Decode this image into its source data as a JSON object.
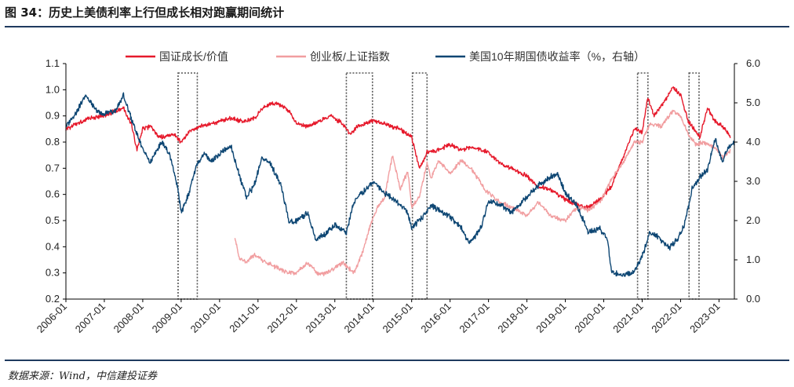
{
  "header": {
    "title": "图 34：历史上美债利率上行但成长相对跑赢期间统计"
  },
  "footer": {
    "source": "数据来源：Wind，中信建投证券"
  },
  "chart_data": {
    "type": "line",
    "title": "图 34：历史上美债利率上行但成长相对跑赢期间统计",
    "x_range": [
      2006.0,
      2023.4
    ],
    "x_ticks": [
      "2006-01",
      "2007-01",
      "2008-01",
      "2009-01",
      "2010-01",
      "2011-01",
      "2012-01",
      "2013-01",
      "2014-01",
      "2015-01",
      "2016-01",
      "2017-01",
      "2018-01",
      "2019-01",
      "2020-01",
      "2021-01",
      "2022-01",
      "2023-01"
    ],
    "y_left": {
      "range": [
        0.2,
        1.1
      ],
      "ticks": [
        "0.2",
        "0.3",
        "0.4",
        "0.5",
        "0.6",
        "0.7",
        "0.8",
        "0.9",
        "1.0",
        "1.1"
      ]
    },
    "y_right": {
      "range": [
        0.0,
        6.0
      ],
      "ticks": [
        "0.0",
        "1.0",
        "2.0",
        "3.0",
        "4.0",
        "5.0",
        "6.0"
      ]
    },
    "legend": {
      "position": "top"
    },
    "series": [
      {
        "name": "国证成长/价值",
        "axis": "left",
        "color": "#e6192b",
        "points": [
          [
            2006.0,
            0.85
          ],
          [
            2006.3,
            0.87
          ],
          [
            2006.6,
            0.89
          ],
          [
            2007.0,
            0.9
          ],
          [
            2007.3,
            0.92
          ],
          [
            2007.5,
            0.93
          ],
          [
            2007.7,
            0.87
          ],
          [
            2007.85,
            0.77
          ],
          [
            2008.0,
            0.85
          ],
          [
            2008.2,
            0.86
          ],
          [
            2008.4,
            0.82
          ],
          [
            2008.6,
            0.82
          ],
          [
            2008.8,
            0.83
          ],
          [
            2009.0,
            0.8
          ],
          [
            2009.2,
            0.84
          ],
          [
            2009.5,
            0.86
          ],
          [
            2009.8,
            0.87
          ],
          [
            2010.0,
            0.88
          ],
          [
            2010.3,
            0.89
          ],
          [
            2010.6,
            0.88
          ],
          [
            2010.9,
            0.89
          ],
          [
            2011.2,
            0.94
          ],
          [
            2011.5,
            0.95
          ],
          [
            2011.8,
            0.92
          ],
          [
            2012.0,
            0.87
          ],
          [
            2012.3,
            0.86
          ],
          [
            2012.6,
            0.88
          ],
          [
            2012.9,
            0.9
          ],
          [
            2013.2,
            0.87
          ],
          [
            2013.4,
            0.83
          ],
          [
            2013.6,
            0.86
          ],
          [
            2014.0,
            0.88
          ],
          [
            2014.3,
            0.87
          ],
          [
            2014.7,
            0.85
          ],
          [
            2015.0,
            0.82
          ],
          [
            2015.2,
            0.7
          ],
          [
            2015.4,
            0.76
          ],
          [
            2015.7,
            0.77
          ],
          [
            2016.0,
            0.79
          ],
          [
            2016.3,
            0.77
          ],
          [
            2016.6,
            0.78
          ],
          [
            2017.0,
            0.76
          ],
          [
            2017.3,
            0.72
          ],
          [
            2017.6,
            0.7
          ],
          [
            2018.0,
            0.67
          ],
          [
            2018.3,
            0.63
          ],
          [
            2018.6,
            0.62
          ],
          [
            2019.0,
            0.58
          ],
          [
            2019.3,
            0.56
          ],
          [
            2019.6,
            0.55
          ],
          [
            2019.9,
            0.58
          ],
          [
            2020.2,
            0.63
          ],
          [
            2020.5,
            0.74
          ],
          [
            2020.8,
            0.85
          ],
          [
            2021.0,
            0.84
          ],
          [
            2021.15,
            0.97
          ],
          [
            2021.3,
            0.9
          ],
          [
            2021.6,
            0.96
          ],
          [
            2021.8,
            1.01
          ],
          [
            2022.0,
            0.98
          ],
          [
            2022.2,
            0.88
          ],
          [
            2022.35,
            0.85
          ],
          [
            2022.5,
            0.82
          ],
          [
            2022.7,
            0.93
          ],
          [
            2022.9,
            0.88
          ],
          [
            2023.1,
            0.86
          ],
          [
            2023.3,
            0.82
          ]
        ]
      },
      {
        "name": "创业板/上证指数",
        "axis": "left",
        "color": "#f19ea0",
        "points": [
          [
            2010.4,
            0.44
          ],
          [
            2010.5,
            0.36
          ],
          [
            2010.7,
            0.34
          ],
          [
            2010.9,
            0.37
          ],
          [
            2011.2,
            0.34
          ],
          [
            2011.5,
            0.32
          ],
          [
            2011.8,
            0.3
          ],
          [
            2012.0,
            0.3
          ],
          [
            2012.3,
            0.34
          ],
          [
            2012.6,
            0.29
          ],
          [
            2012.9,
            0.31
          ],
          [
            2013.2,
            0.34
          ],
          [
            2013.5,
            0.3
          ],
          [
            2013.7,
            0.37
          ],
          [
            2013.9,
            0.47
          ],
          [
            2014.1,
            0.55
          ],
          [
            2014.3,
            0.59
          ],
          [
            2014.5,
            0.75
          ],
          [
            2014.7,
            0.62
          ],
          [
            2014.9,
            0.69
          ],
          [
            2015.0,
            0.55
          ],
          [
            2015.2,
            0.59
          ],
          [
            2015.4,
            0.72
          ],
          [
            2015.5,
            0.66
          ],
          [
            2015.7,
            0.73
          ],
          [
            2016.0,
            0.68
          ],
          [
            2016.3,
            0.73
          ],
          [
            2016.6,
            0.69
          ],
          [
            2016.9,
            0.62
          ],
          [
            2017.2,
            0.58
          ],
          [
            2017.6,
            0.55
          ],
          [
            2018.0,
            0.52
          ],
          [
            2018.3,
            0.57
          ],
          [
            2018.6,
            0.52
          ],
          [
            2019.0,
            0.5
          ],
          [
            2019.3,
            0.55
          ],
          [
            2019.6,
            0.54
          ],
          [
            2019.9,
            0.57
          ],
          [
            2020.2,
            0.66
          ],
          [
            2020.5,
            0.72
          ],
          [
            2020.8,
            0.8
          ],
          [
            2021.0,
            0.8
          ],
          [
            2021.2,
            0.87
          ],
          [
            2021.5,
            0.86
          ],
          [
            2021.8,
            0.92
          ],
          [
            2022.0,
            0.9
          ],
          [
            2022.2,
            0.83
          ],
          [
            2022.4,
            0.79
          ],
          [
            2022.6,
            0.8
          ],
          [
            2022.9,
            0.78
          ],
          [
            2023.1,
            0.74
          ],
          [
            2023.3,
            0.77
          ]
        ]
      },
      {
        "name": "美国10年期国债收益率（%，右轴）",
        "axis": "right",
        "color": "#0d4673",
        "points": [
          [
            2006.0,
            4.4
          ],
          [
            2006.3,
            4.8
          ],
          [
            2006.5,
            5.2
          ],
          [
            2006.8,
            4.8
          ],
          [
            2007.0,
            4.7
          ],
          [
            2007.3,
            4.8
          ],
          [
            2007.5,
            5.2
          ],
          [
            2007.7,
            4.6
          ],
          [
            2008.0,
            3.8
          ],
          [
            2008.2,
            3.5
          ],
          [
            2008.5,
            4.0
          ],
          [
            2008.7,
            3.7
          ],
          [
            2008.9,
            2.9
          ],
          [
            2009.0,
            2.2
          ],
          [
            2009.2,
            2.7
          ],
          [
            2009.4,
            3.4
          ],
          [
            2009.6,
            3.7
          ],
          [
            2009.8,
            3.5
          ],
          [
            2010.0,
            3.7
          ],
          [
            2010.3,
            3.9
          ],
          [
            2010.5,
            3.2
          ],
          [
            2010.7,
            2.6
          ],
          [
            2010.9,
            2.9
          ],
          [
            2011.1,
            3.6
          ],
          [
            2011.3,
            3.5
          ],
          [
            2011.6,
            2.9
          ],
          [
            2011.8,
            2.0
          ],
          [
            2012.0,
            2.0
          ],
          [
            2012.3,
            2.2
          ],
          [
            2012.5,
            1.5
          ],
          [
            2012.8,
            1.7
          ],
          [
            2013.0,
            1.9
          ],
          [
            2013.3,
            1.7
          ],
          [
            2013.5,
            2.5
          ],
          [
            2013.8,
            2.8
          ],
          [
            2014.0,
            3.0
          ],
          [
            2014.3,
            2.7
          ],
          [
            2014.6,
            2.5
          ],
          [
            2014.9,
            2.2
          ],
          [
            2015.0,
            1.8
          ],
          [
            2015.3,
            2.1
          ],
          [
            2015.5,
            2.4
          ],
          [
            2015.8,
            2.2
          ],
          [
            2016.0,
            2.1
          ],
          [
            2016.3,
            1.8
          ],
          [
            2016.5,
            1.4
          ],
          [
            2016.8,
            1.8
          ],
          [
            2017.0,
            2.5
          ],
          [
            2017.3,
            2.4
          ],
          [
            2017.6,
            2.2
          ],
          [
            2018.0,
            2.6
          ],
          [
            2018.3,
            2.9
          ],
          [
            2018.6,
            3.1
          ],
          [
            2018.8,
            3.2
          ],
          [
            2019.0,
            2.7
          ],
          [
            2019.3,
            2.4
          ],
          [
            2019.6,
            1.7
          ],
          [
            2019.9,
            1.8
          ],
          [
            2020.1,
            1.5
          ],
          [
            2020.2,
            0.7
          ],
          [
            2020.5,
            0.6
          ],
          [
            2020.8,
            0.7
          ],
          [
            2021.0,
            1.1
          ],
          [
            2021.2,
            1.7
          ],
          [
            2021.4,
            1.6
          ],
          [
            2021.7,
            1.3
          ],
          [
            2021.9,
            1.5
          ],
          [
            2022.1,
            1.9
          ],
          [
            2022.3,
            2.8
          ],
          [
            2022.5,
            3.1
          ],
          [
            2022.7,
            3.3
          ],
          [
            2022.9,
            4.1
          ],
          [
            2023.1,
            3.5
          ],
          [
            2023.2,
            3.8
          ],
          [
            2023.4,
            4.0
          ]
        ]
      }
    ],
    "highlight_periods": [
      [
        2008.92,
        2009.42
      ],
      [
        2013.3,
        2013.98
      ],
      [
        2015.02,
        2015.4
      ],
      [
        2020.88,
        2021.15
      ],
      [
        2022.22,
        2022.48
      ]
    ]
  }
}
